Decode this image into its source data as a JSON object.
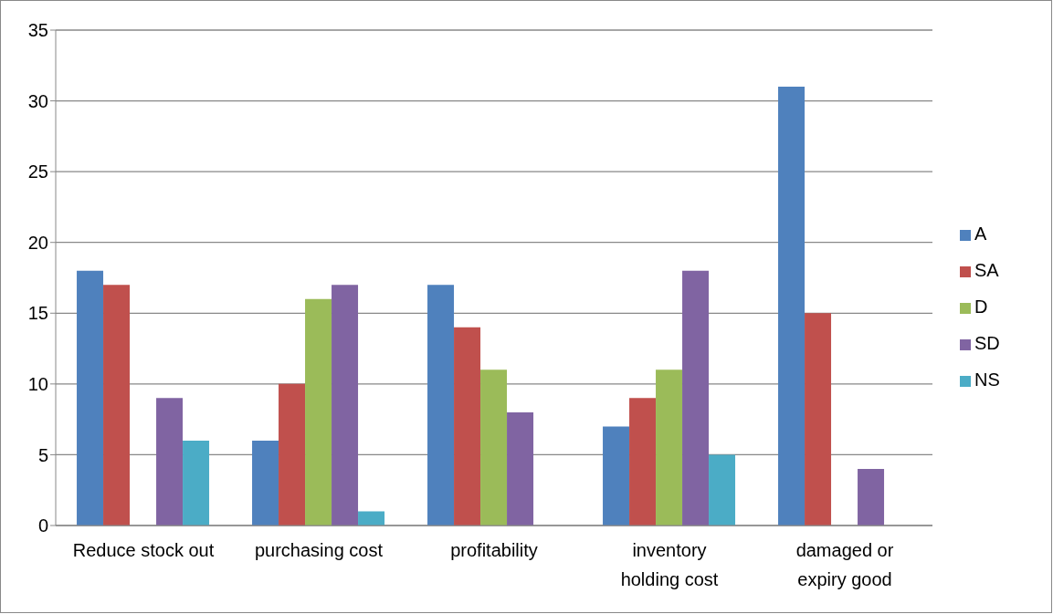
{
  "chart_data": {
    "type": "bar",
    "categories": [
      "Reduce stock out",
      "purchasing cost",
      "profitability",
      "inventory holding cost",
      "damaged or expiry good"
    ],
    "series": [
      {
        "name": "A",
        "color": "#4f81bd",
        "values": [
          18,
          6,
          17,
          7,
          31
        ]
      },
      {
        "name": "SA",
        "color": "#c0504d",
        "values": [
          17,
          10,
          14,
          9,
          15
        ]
      },
      {
        "name": "D",
        "color": "#9bbb59",
        "values": [
          0,
          16,
          11,
          11,
          0
        ]
      },
      {
        "name": "SD",
        "color": "#8064a2",
        "values": [
          9,
          17,
          8,
          18,
          4
        ]
      },
      {
        "name": "NS",
        "color": "#4bacc6",
        "values": [
          6,
          1,
          0,
          5,
          0
        ]
      }
    ],
    "ylim": [
      0,
      35
    ],
    "yticks": [
      0,
      5,
      10,
      15,
      20,
      25,
      30,
      35
    ],
    "grid": "y",
    "legend": "right"
  }
}
